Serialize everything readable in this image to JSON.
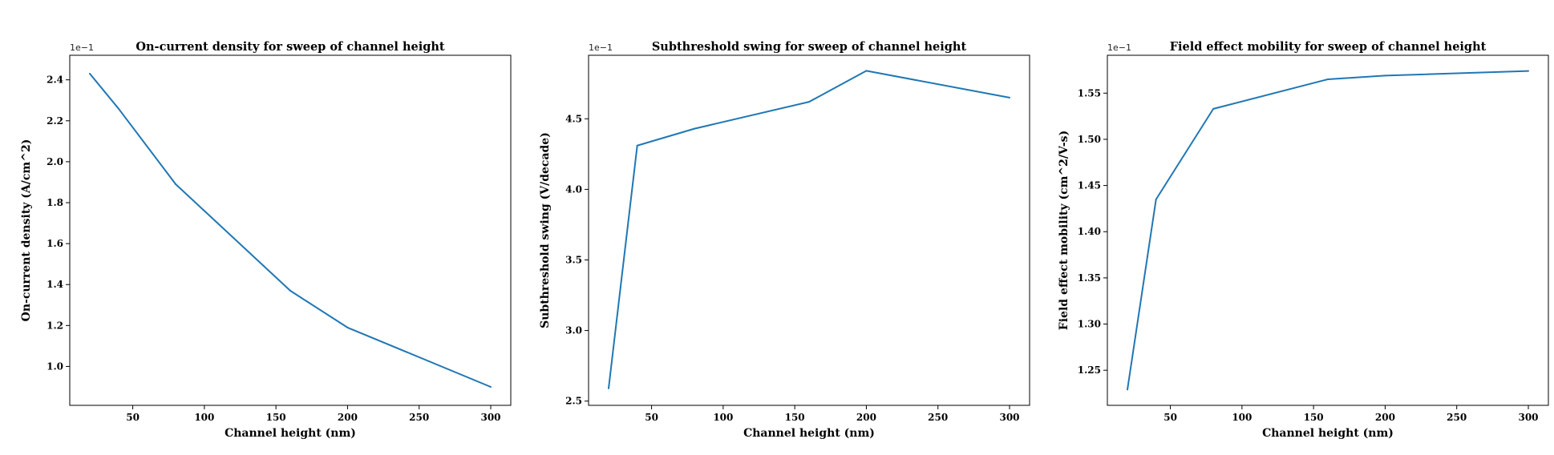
{
  "chart_data": [
    {
      "type": "line",
      "title": "On-current density for sweep of channel height",
      "xlabel": "Channel height (nm)",
      "ylabel": "On-current density (A/cm^2)",
      "y_offset_label": "1e−1",
      "x": [
        20,
        40,
        80,
        160,
        200,
        300
      ],
      "series": [
        {
          "values": [
            2.43,
            2.26,
            1.89,
            1.37,
            1.19,
            0.9
          ]
        }
      ],
      "xlim": [
        6,
        314
      ],
      "ylim": [
        0.81,
        2.52
      ],
      "xticks": [
        50,
        100,
        150,
        200,
        250,
        300
      ],
      "xtick_labels": [
        "50",
        "100",
        "150",
        "200",
        "250",
        "300"
      ],
      "yticks": [
        1.0,
        1.2,
        1.4,
        1.6,
        1.8,
        2.0,
        2.2,
        2.4
      ],
      "ytick_labels": [
        "1.0",
        "1.2",
        "1.4",
        "1.6",
        "1.8",
        "2.0",
        "2.2",
        "2.4"
      ],
      "color": "#1f77b4",
      "grid": false
    },
    {
      "type": "line",
      "title": "Subthreshold swing for sweep of channel height",
      "xlabel": "Channel height (nm)",
      "ylabel": "Subthreshold swing (V/decade)",
      "y_offset_label": "1e−1",
      "x": [
        20,
        40,
        80,
        160,
        200,
        300
      ],
      "series": [
        {
          "values": [
            2.59,
            4.31,
            4.43,
            4.62,
            4.84,
            4.65
          ]
        }
      ],
      "xlim": [
        6,
        314
      ],
      "ylim": [
        2.47,
        4.95
      ],
      "xticks": [
        50,
        100,
        150,
        200,
        250,
        300
      ],
      "xtick_labels": [
        "50",
        "100",
        "150",
        "200",
        "250",
        "300"
      ],
      "yticks": [
        2.5,
        3.0,
        3.5,
        4.0,
        4.5
      ],
      "ytick_labels": [
        "2.5",
        "3.0",
        "3.5",
        "4.0",
        "4.5"
      ],
      "color": "#1f77b4",
      "grid": false
    },
    {
      "type": "line",
      "title": "Field effect mobility for sweep of channel height",
      "xlabel": "Channel height (nm)",
      "ylabel": "Field effect mobility (cm^2/V-s)",
      "y_offset_label": "1e−1",
      "x": [
        20,
        40,
        80,
        160,
        200,
        300
      ],
      "series": [
        {
          "values": [
            1.229,
            1.435,
            1.533,
            1.565,
            1.569,
            1.574
          ]
        }
      ],
      "xlim": [
        6,
        314
      ],
      "ylim": [
        1.212,
        1.591
      ],
      "xticks": [
        50,
        100,
        150,
        200,
        250,
        300
      ],
      "xtick_labels": [
        "50",
        "100",
        "150",
        "200",
        "250",
        "300"
      ],
      "yticks": [
        1.25,
        1.3,
        1.35,
        1.4,
        1.45,
        1.5,
        1.55
      ],
      "ytick_labels": [
        "1.25",
        "1.30",
        "1.35",
        "1.40",
        "1.45",
        "1.50",
        "1.55"
      ],
      "color": "#1f77b4",
      "grid": false
    }
  ]
}
